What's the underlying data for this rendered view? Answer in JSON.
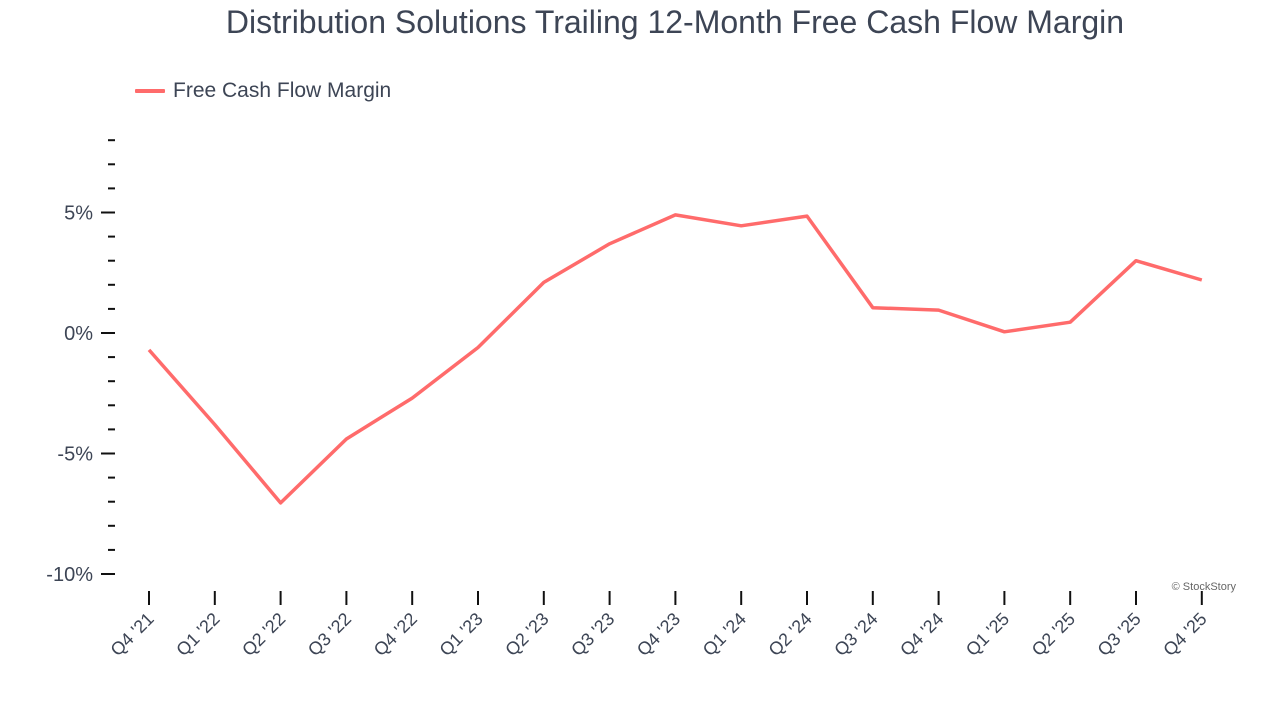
{
  "title": "Distribution Solutions Trailing 12-Month Free Cash Flow Margin",
  "legend": {
    "label": "Free Cash Flow Margin",
    "color": "#ff6b6b"
  },
  "credit": "© StockStory",
  "chart_data": {
    "type": "line",
    "title": "Distribution Solutions Trailing 12-Month Free Cash Flow Margin",
    "xlabel": "",
    "ylabel": "",
    "categories": [
      "Q4 '21",
      "Q1 '22",
      "Q2 '22",
      "Q3 '22",
      "Q4 '22",
      "Q1 '23",
      "Q2 '23",
      "Q3 '23",
      "Q4 '23",
      "Q1 '24",
      "Q2 '24",
      "Q3 '24",
      "Q4 '24",
      "Q1 '25",
      "Q2 '25",
      "Q3 '25",
      "Q4 '25"
    ],
    "series": [
      {
        "name": "Free Cash Flow Margin",
        "color": "#ff6b6b",
        "values": [
          -0.7,
          -3.8,
          -7.05,
          -4.4,
          -2.7,
          -0.6,
          2.1,
          3.7,
          4.9,
          4.45,
          4.85,
          1.05,
          0.95,
          0.05,
          0.45,
          3.0,
          2.2
        ]
      }
    ],
    "y_ticks": [
      {
        "value": 5,
        "label": "5%"
      },
      {
        "value": 0,
        "label": "0%"
      },
      {
        "value": -5,
        "label": "-5%"
      },
      {
        "value": -10,
        "label": "-10%"
      }
    ],
    "ylim": [
      -10,
      8
    ],
    "grid": false,
    "legend_position": "top-left"
  }
}
